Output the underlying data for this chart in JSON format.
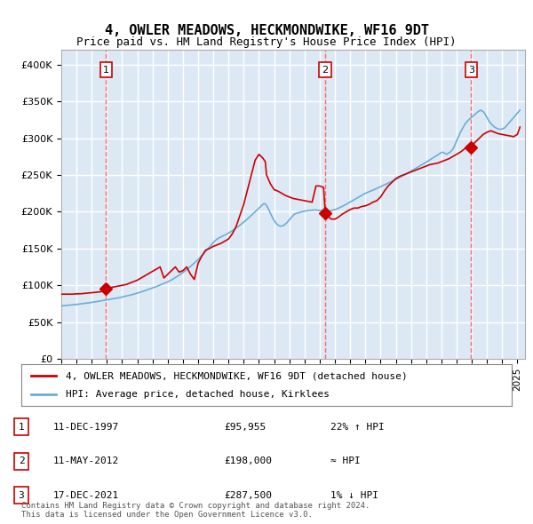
{
  "title": "4, OWLER MEADOWS, HECKMONDWIKE, WF16 9DT",
  "subtitle": "Price paid vs. HM Land Registry's House Price Index (HPI)",
  "title_fontsize": 12,
  "subtitle_fontsize": 10,
  "background_color": "#dce9f5",
  "plot_bg_color": "#dce9f5",
  "grid_color": "#ffffff",
  "ylim": [
    0,
    420000
  ],
  "yticks": [
    0,
    50000,
    100000,
    150000,
    200000,
    250000,
    300000,
    350000,
    400000
  ],
  "ytick_labels": [
    "£0",
    "£50K",
    "£100K",
    "£150K",
    "£200K",
    "£250K",
    "£300K",
    "£350K",
    "£400K"
  ],
  "xlim_start": 1995.0,
  "xlim_end": 2025.5,
  "xtick_years": [
    1995,
    1996,
    1997,
    1998,
    1999,
    2000,
    2001,
    2002,
    2003,
    2004,
    2005,
    2006,
    2007,
    2008,
    2009,
    2010,
    2011,
    2012,
    2013,
    2014,
    2015,
    2016,
    2017,
    2018,
    2019,
    2020,
    2021,
    2022,
    2023,
    2024,
    2025
  ],
  "hpi_line_color": "#6baed6",
  "price_line_color": "#cc0000",
  "marker_color": "#cc0000",
  "dashed_line_color": "#ff6666",
  "legend_box_color": "#ffffff",
  "transaction_dates": [
    1997.95,
    2012.36,
    2021.96
  ],
  "transaction_prices": [
    95955,
    198000,
    287500
  ],
  "transaction_labels": [
    "1",
    "2",
    "3"
  ],
  "legend_line1": "4, OWLER MEADOWS, HECKMONDWIKE, WF16 9DT (detached house)",
  "legend_line2": "HPI: Average price, detached house, Kirklees",
  "table_entries": [
    {
      "num": "1",
      "date": "11-DEC-1997",
      "price": "£95,955",
      "hpi": "22% ↑ HPI"
    },
    {
      "num": "2",
      "date": "11-MAY-2012",
      "price": "£198,000",
      "hpi": "≈ HPI"
    },
    {
      "num": "3",
      "date": "17-DEC-2021",
      "price": "£287,500",
      "hpi": "1% ↓ HPI"
    }
  ],
  "footer": "Contains HM Land Registry data © Crown copyright and database right 2024.\nThis data is licensed under the Open Government Licence v3.0.",
  "hpi_data": {
    "years": [
      1995.0,
      1995.083,
      1995.167,
      1995.25,
      1995.333,
      1995.417,
      1995.5,
      1995.583,
      1995.667,
      1995.75,
      1995.833,
      1995.917,
      1996.0,
      1996.083,
      1996.167,
      1996.25,
      1996.333,
      1996.417,
      1996.5,
      1996.583,
      1996.667,
      1996.75,
      1996.833,
      1996.917,
      1997.0,
      1997.083,
      1997.167,
      1997.25,
      1997.333,
      1997.417,
      1997.5,
      1997.583,
      1997.667,
      1997.75,
      1997.833,
      1997.917,
      1998.0,
      1998.083,
      1998.167,
      1998.25,
      1998.333,
      1998.417,
      1998.5,
      1998.583,
      1998.667,
      1998.75,
      1998.833,
      1998.917,
      1999.0,
      1999.083,
      1999.167,
      1999.25,
      1999.333,
      1999.417,
      1999.5,
      1999.583,
      1999.667,
      1999.75,
      1999.833,
      1999.917,
      2000.0,
      2000.083,
      2000.167,
      2000.25,
      2000.333,
      2000.417,
      2000.5,
      2000.583,
      2000.667,
      2000.75,
      2000.833,
      2000.917,
      2001.0,
      2001.083,
      2001.167,
      2001.25,
      2001.333,
      2001.417,
      2001.5,
      2001.583,
      2001.667,
      2001.75,
      2001.833,
      2001.917,
      2002.0,
      2002.083,
      2002.167,
      2002.25,
      2002.333,
      2002.417,
      2002.5,
      2002.583,
      2002.667,
      2002.75,
      2002.833,
      2002.917,
      2003.0,
      2003.083,
      2003.167,
      2003.25,
      2003.333,
      2003.417,
      2003.5,
      2003.583,
      2003.667,
      2003.75,
      2003.833,
      2003.917,
      2004.0,
      2004.083,
      2004.167,
      2004.25,
      2004.333,
      2004.417,
      2004.5,
      2004.583,
      2004.667,
      2004.75,
      2004.833,
      2004.917,
      2005.0,
      2005.083,
      2005.167,
      2005.25,
      2005.333,
      2005.417,
      2005.5,
      2005.583,
      2005.667,
      2005.75,
      2005.833,
      2005.917,
      2006.0,
      2006.083,
      2006.167,
      2006.25,
      2006.333,
      2006.417,
      2006.5,
      2006.583,
      2006.667,
      2006.75,
      2006.833,
      2006.917,
      2007.0,
      2007.083,
      2007.167,
      2007.25,
      2007.333,
      2007.417,
      2007.5,
      2007.583,
      2007.667,
      2007.75,
      2007.833,
      2007.917,
      2008.0,
      2008.083,
      2008.167,
      2008.25,
      2008.333,
      2008.417,
      2008.5,
      2008.583,
      2008.667,
      2008.75,
      2008.833,
      2008.917,
      2009.0,
      2009.083,
      2009.167,
      2009.25,
      2009.333,
      2009.417,
      2009.5,
      2009.583,
      2009.667,
      2009.75,
      2009.833,
      2009.917,
      2010.0,
      2010.083,
      2010.167,
      2010.25,
      2010.333,
      2010.417,
      2010.5,
      2010.583,
      2010.667,
      2010.75,
      2010.833,
      2010.917,
      2011.0,
      2011.083,
      2011.167,
      2011.25,
      2011.333,
      2011.417,
      2011.5,
      2011.583,
      2011.667,
      2011.75,
      2011.833,
      2011.917,
      2012.0,
      2012.083,
      2012.167,
      2012.25,
      2012.333,
      2012.417,
      2012.5,
      2012.583,
      2012.667,
      2012.75,
      2012.833,
      2012.917,
      2013.0,
      2013.083,
      2013.167,
      2013.25,
      2013.333,
      2013.417,
      2013.5,
      2013.583,
      2013.667,
      2013.75,
      2013.833,
      2013.917,
      2014.0,
      2014.083,
      2014.167,
      2014.25,
      2014.333,
      2014.417,
      2014.5,
      2014.583,
      2014.667,
      2014.75,
      2014.833,
      2014.917,
      2015.0,
      2015.083,
      2015.167,
      2015.25,
      2015.333,
      2015.417,
      2015.5,
      2015.583,
      2015.667,
      2015.75,
      2015.833,
      2015.917,
      2016.0,
      2016.083,
      2016.167,
      2016.25,
      2016.333,
      2016.417,
      2016.5,
      2016.583,
      2016.667,
      2016.75,
      2016.833,
      2016.917,
      2017.0,
      2017.083,
      2017.167,
      2017.25,
      2017.333,
      2017.417,
      2017.5,
      2017.583,
      2017.667,
      2017.75,
      2017.833,
      2017.917,
      2018.0,
      2018.083,
      2018.167,
      2018.25,
      2018.333,
      2018.417,
      2018.5,
      2018.583,
      2018.667,
      2018.75,
      2018.833,
      2018.917,
      2019.0,
      2019.083,
      2019.167,
      2019.25,
      2019.333,
      2019.417,
      2019.5,
      2019.583,
      2019.667,
      2019.75,
      2019.833,
      2019.917,
      2020.0,
      2020.083,
      2020.167,
      2020.25,
      2020.333,
      2020.417,
      2020.5,
      2020.583,
      2020.667,
      2020.75,
      2020.833,
      2020.917,
      2021.0,
      2021.083,
      2021.167,
      2021.25,
      2021.333,
      2021.417,
      2021.5,
      2021.583,
      2021.667,
      2021.75,
      2021.833,
      2021.917,
      2022.0,
      2022.083,
      2022.167,
      2022.25,
      2022.333,
      2022.417,
      2022.5,
      2022.583,
      2022.667,
      2022.75,
      2022.833,
      2022.917,
      2023.0,
      2023.083,
      2023.167,
      2023.25,
      2023.333,
      2023.417,
      2023.5,
      2023.583,
      2023.667,
      2023.75,
      2023.833,
      2023.917,
      2024.0,
      2024.083,
      2024.167,
      2024.25,
      2024.333,
      2024.417,
      2024.5,
      2024.583,
      2024.667,
      2024.75,
      2024.833,
      2024.917,
      2025.0,
      2025.083,
      2025.167
    ],
    "values": [
      72000,
      72200,
      72400,
      72500,
      72700,
      72900,
      73000,
      73200,
      73400,
      73500,
      73700,
      73900,
      74000,
      74200,
      74500,
      74700,
      75000,
      75200,
      75400,
      75700,
      75900,
      76100,
      76300,
      76600,
      76800,
      77100,
      77400,
      77600,
      77900,
      78200,
      78500,
      78800,
      79000,
      79300,
      79600,
      79900,
      80200,
      80500,
      80800,
      81100,
      81400,
      81700,
      82000,
      82400,
      82700,
      83000,
      83300,
      83700,
      84000,
      84400,
      84800,
      85200,
      85600,
      86100,
      86500,
      87000,
      87400,
      87900,
      88400,
      88900,
      89400,
      89900,
      90500,
      91000,
      91600,
      92200,
      92700,
      93300,
      93900,
      94500,
      95100,
      95700,
      96400,
      97000,
      97700,
      98300,
      99000,
      99700,
      100400,
      101100,
      101800,
      102500,
      103200,
      103900,
      104700,
      105600,
      106500,
      107400,
      108400,
      109400,
      110400,
      111500,
      112600,
      113700,
      114900,
      116100,
      117400,
      118700,
      120000,
      121400,
      122800,
      124200,
      125700,
      127200,
      128700,
      130300,
      131900,
      133500,
      135200,
      137000,
      138700,
      140500,
      142400,
      144200,
      146100,
      148100,
      150000,
      152000,
      154000,
      156100,
      158200,
      160000,
      161500,
      162800,
      163900,
      164900,
      165800,
      166600,
      167400,
      168200,
      169100,
      170000,
      171000,
      172000,
      173100,
      174200,
      175400,
      176600,
      177800,
      179100,
      180400,
      181700,
      183100,
      184500,
      185900,
      187300,
      188800,
      190300,
      191800,
      193400,
      195000,
      196500,
      198100,
      199700,
      201300,
      203000,
      204700,
      206400,
      208100,
      209900,
      211200,
      210500,
      208500,
      205500,
      202000,
      198000,
      194500,
      191000,
      188000,
      185500,
      183500,
      182000,
      181000,
      180500,
      180500,
      181000,
      182000,
      183500,
      185000,
      187000,
      189000,
      191000,
      193000,
      195000,
      196500,
      197500,
      198000,
      198500,
      199000,
      199500,
      200000,
      200500,
      200700,
      201000,
      201300,
      201600,
      201900,
      202000,
      202100,
      202200,
      202300,
      202400,
      202200,
      202000,
      201800,
      201500,
      201300,
      201000,
      200800,
      200700,
      200600,
      200800,
      201000,
      201500,
      202000,
      202500,
      203000,
      203500,
      204200,
      205000,
      205800,
      206700,
      207500,
      208400,
      209300,
      210200,
      211200,
      212200,
      213200,
      214200,
      215200,
      216200,
      217200,
      218200,
      219200,
      220200,
      221200,
      222200,
      223200,
      224200,
      225000,
      225800,
      226500,
      227200,
      227900,
      228600,
      229300,
      230000,
      230800,
      231600,
      232400,
      233200,
      234000,
      234800,
      235600,
      236500,
      237300,
      238100,
      238900,
      239700,
      240500,
      241300,
      242100,
      243000,
      243800,
      244700,
      245600,
      246500,
      247400,
      248300,
      249200,
      250100,
      251100,
      252100,
      253100,
      254100,
      255100,
      256100,
      257100,
      258100,
      259100,
      260200,
      261200,
      262200,
      263200,
      264200,
      265200,
      266300,
      267300,
      268400,
      269500,
      270500,
      271600,
      272700,
      273800,
      274900,
      276000,
      277100,
      278200,
      279300,
      280400,
      281000,
      280000,
      279000,
      278000,
      279000,
      280000,
      281000,
      283000,
      285000,
      288000,
      292000,
      296000,
      300000,
      304000,
      308000,
      311000,
      314000,
      317000,
      320000,
      322000,
      324000,
      325500,
      327000,
      328500,
      330000,
      331500,
      333000,
      334500,
      336000,
      337000,
      338000,
      337000,
      336000,
      334000,
      331000,
      328000,
      325000,
      322000,
      320000,
      318000,
      316500,
      315000,
      314000,
      313000,
      312500,
      312000,
      312000,
      312500,
      313000,
      314000,
      316000,
      318000,
      320000,
      322000,
      324000,
      326000,
      328000,
      330000,
      332000,
      334000,
      336000,
      338000
    ]
  },
  "price_data": {
    "years": [
      1995.0,
      1995.25,
      1995.5,
      1995.75,
      1996.0,
      1996.25,
      1996.5,
      1996.75,
      1997.0,
      1997.25,
      1997.5,
      1997.75,
      1997.95,
      1998.0,
      1998.25,
      1998.5,
      1998.75,
      1999.0,
      1999.25,
      1999.5,
      1999.75,
      2000.0,
      2000.25,
      2000.5,
      2000.75,
      2001.0,
      2001.25,
      2001.5,
      2001.75,
      2002.0,
      2002.25,
      2002.5,
      2002.75,
      2003.0,
      2003.25,
      2003.5,
      2003.75,
      2004.0,
      2004.25,
      2004.5,
      2004.75,
      2005.0,
      2005.25,
      2005.5,
      2005.75,
      2006.0,
      2006.25,
      2006.5,
      2006.75,
      2007.0,
      2007.25,
      2007.5,
      2007.75,
      2008.0,
      2008.25,
      2008.417,
      2008.5,
      2008.75,
      2009.0,
      2009.25,
      2009.5,
      2009.75,
      2010.0,
      2010.25,
      2010.5,
      2010.75,
      2011.0,
      2011.25,
      2011.5,
      2011.75,
      2012.0,
      2012.25,
      2012.36,
      2012.5,
      2012.75,
      2013.0,
      2013.25,
      2013.5,
      2013.75,
      2014.0,
      2014.25,
      2014.5,
      2014.75,
      2015.0,
      2015.25,
      2015.5,
      2015.75,
      2016.0,
      2016.25,
      2016.5,
      2016.75,
      2017.0,
      2017.25,
      2017.5,
      2017.75,
      2018.0,
      2018.25,
      2018.5,
      2018.75,
      2019.0,
      2019.25,
      2019.5,
      2019.75,
      2020.0,
      2020.25,
      2020.5,
      2020.75,
      2021.0,
      2021.25,
      2021.5,
      2021.75,
      2021.96,
      2022.0,
      2022.25,
      2022.5,
      2022.75,
      2023.0,
      2023.25,
      2023.5,
      2023.75,
      2024.0,
      2024.25,
      2024.5,
      2024.75,
      2025.0,
      2025.167
    ],
    "values": [
      88000,
      88000,
      88000,
      88000,
      88500,
      88500,
      89000,
      89500,
      90000,
      90500,
      91000,
      92000,
      95955,
      96000,
      97000,
      98000,
      99000,
      100000,
      101000,
      103000,
      105000,
      107000,
      110000,
      113000,
      116000,
      119000,
      122000,
      125000,
      110000,
      115000,
      120000,
      125000,
      118000,
      120000,
      125000,
      115000,
      108000,
      130000,
      140000,
      148000,
      150000,
      153000,
      155000,
      157000,
      160000,
      163000,
      170000,
      180000,
      195000,
      210000,
      230000,
      250000,
      270000,
      278000,
      273000,
      268000,
      250000,
      238000,
      230000,
      228000,
      225000,
      222000,
      220000,
      218000,
      217000,
      216000,
      215000,
      214000,
      213000,
      235000,
      235000,
      233000,
      198000,
      195000,
      190000,
      190000,
      193000,
      197000,
      200000,
      203000,
      205000,
      205000,
      207000,
      208000,
      210000,
      213000,
      215000,
      220000,
      228000,
      235000,
      240000,
      245000,
      248000,
      250000,
      252000,
      254000,
      256000,
      258000,
      260000,
      262000,
      264000,
      265000,
      266000,
      268000,
      270000,
      272000,
      275000,
      278000,
      281000,
      285000,
      290000,
      287500,
      290000,
      295000,
      300000,
      305000,
      308000,
      310000,
      308000,
      306000,
      305000,
      304000,
      303000,
      302000,
      305000,
      315000
    ]
  }
}
